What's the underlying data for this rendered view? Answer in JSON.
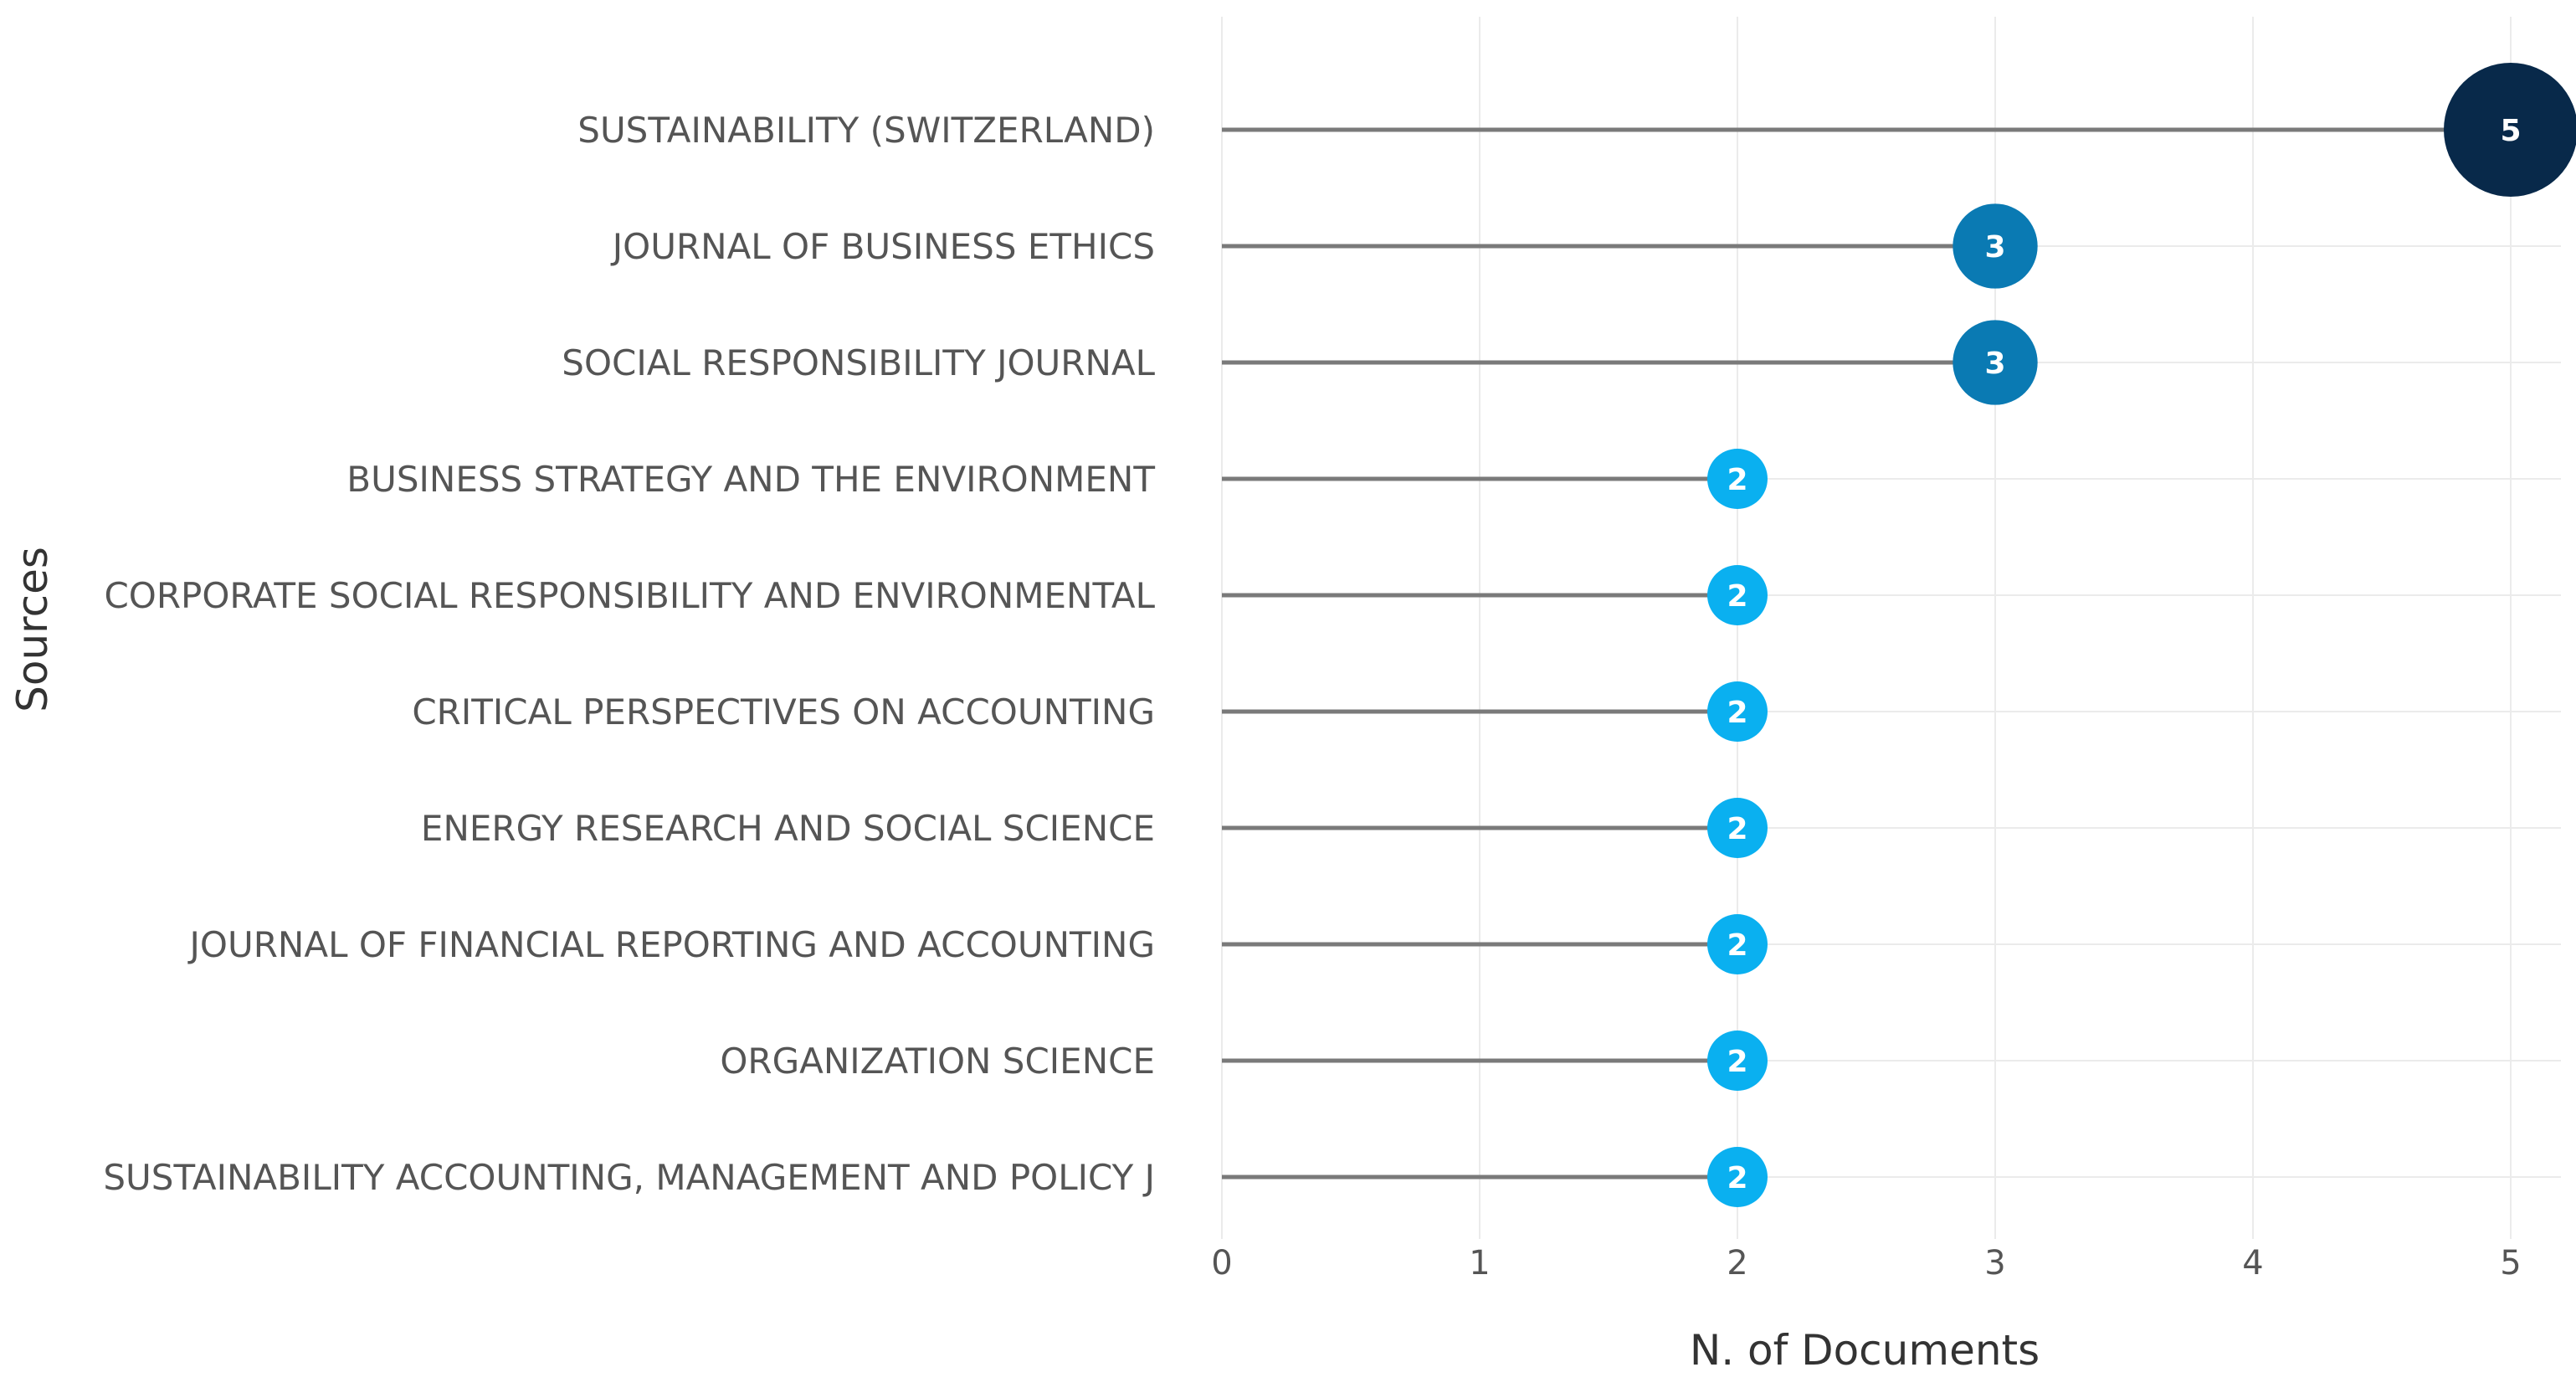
{
  "chart_data": {
    "type": "scatter",
    "title": "",
    "xlabel": "N. of Documents",
    "ylabel": "Sources",
    "xlim": [
      0,
      5
    ],
    "x_ticks": [
      "0",
      "1",
      "2",
      "3",
      "4",
      "5"
    ],
    "grid": true,
    "categories": [
      "SUSTAINABILITY (SWITZERLAND)",
      "JOURNAL OF BUSINESS ETHICS",
      "SOCIAL RESPONSIBILITY JOURNAL",
      "BUSINESS STRATEGY AND THE ENVIRONMENT",
      "CORPORATE SOCIAL RESPONSIBILITY AND ENVIRONMENTAL",
      "CRITICAL PERSPECTIVES ON ACCOUNTING",
      "ENERGY RESEARCH AND SOCIAL SCIENCE",
      "JOURNAL OF FINANCIAL REPORTING AND ACCOUNTING",
      "ORGANIZATION SCIENCE",
      "SUSTAINABILITY ACCOUNTING, MANAGEMENT AND POLICY J"
    ],
    "values": [
      5,
      3,
      3,
      2,
      2,
      2,
      2,
      2,
      2,
      2
    ],
    "data_labels": [
      "5",
      "3",
      "3",
      "2",
      "2",
      "2",
      "2",
      "2",
      "2",
      "2"
    ],
    "colors": {
      "5": "#08294a",
      "3": "#0a7ab3",
      "2": "#0ab0f0",
      "stem": "#7a7a7a",
      "grid": "#ebebeb"
    }
  }
}
